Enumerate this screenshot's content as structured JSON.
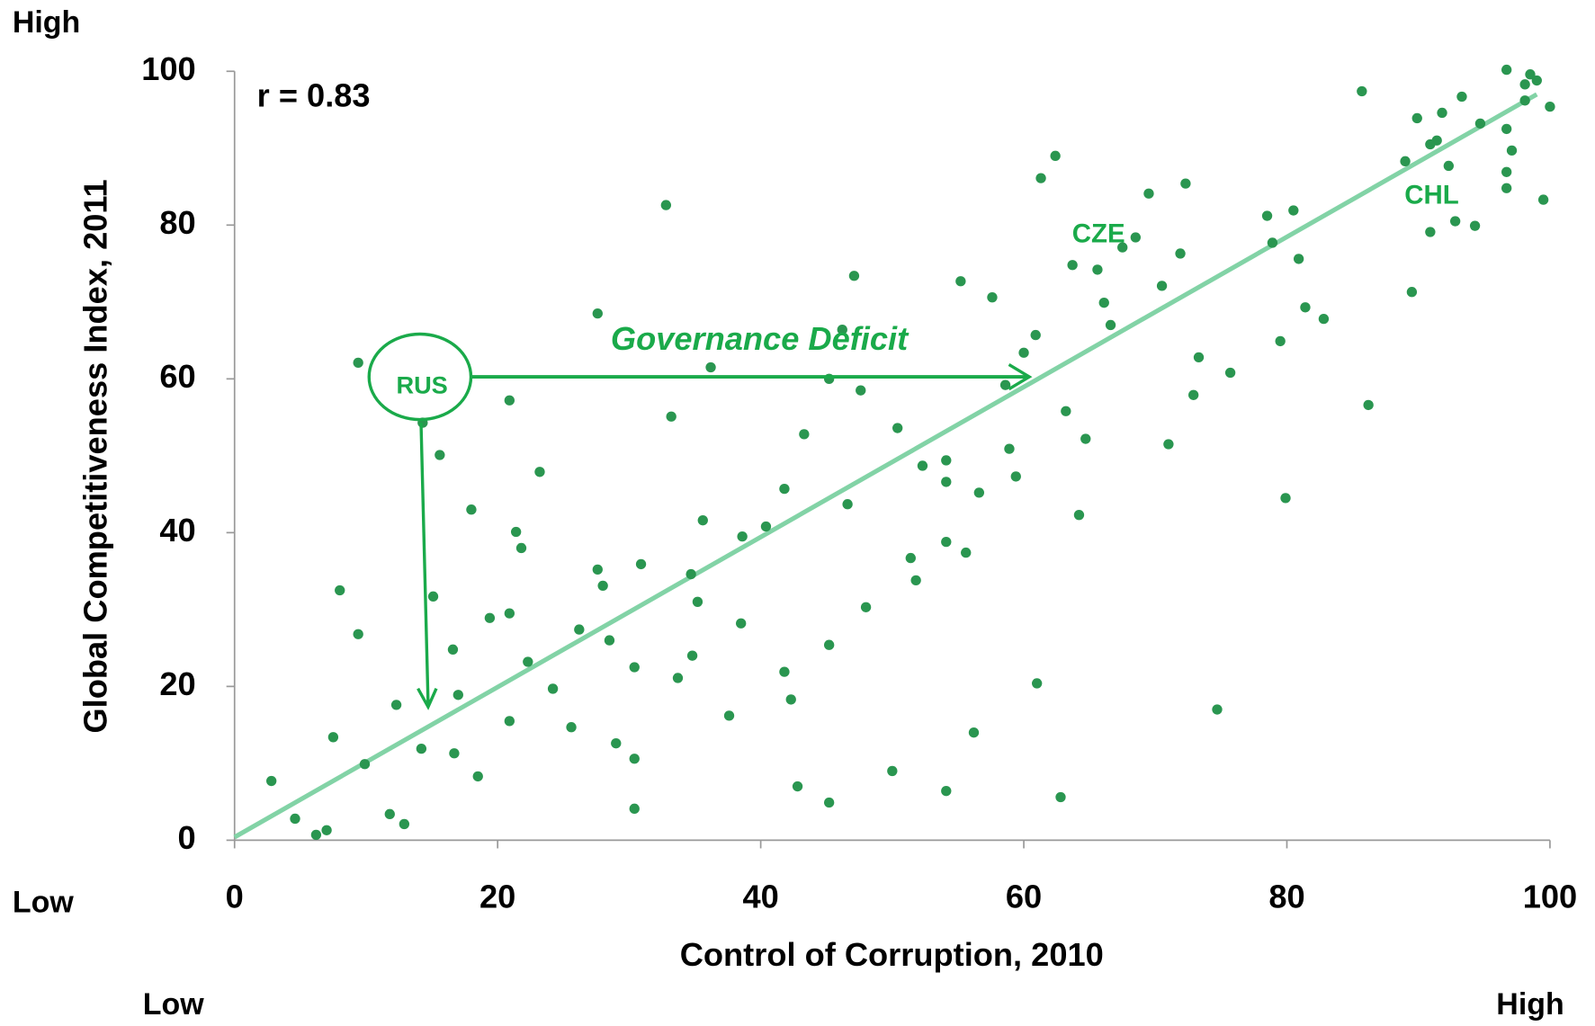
{
  "chart_data": {
    "type": "scatter",
    "xlabel": "Control of Corruption, 2010",
    "ylabel": "Global Competitiveness Index, 2011",
    "y_high_label": "High",
    "y_low_label": "Low",
    "x_low_label": "Low",
    "x_high_label": "High",
    "correlation_label": "r = 0.83",
    "annotations": [
      "RUS",
      "CZE",
      "CHL",
      "Governance Deficit"
    ],
    "xlim": [
      0,
      100
    ],
    "ylim": [
      0,
      100
    ],
    "xticks": [
      0,
      20,
      40,
      60,
      80,
      100
    ],
    "yticks": [
      0,
      20,
      40,
      60,
      80,
      100
    ],
    "color": "#2a9650",
    "trend_color": "#82d3a6",
    "trendline": {
      "x": [
        0,
        99
      ],
      "y": [
        0.4,
        97
      ]
    },
    "x": [
      2.8,
      4.6,
      6.2,
      7.0,
      7.5,
      8.0,
      9.4,
      9.4,
      9.9,
      11.8,
      12.3,
      12.9,
      14.2,
      14.3,
      15.1,
      15.6,
      16.6,
      16.7,
      17.0,
      18.0,
      18.5,
      19.4,
      20.9,
      20.9,
      20.9,
      21.4,
      21.8,
      22.3,
      23.2,
      24.2,
      25.6,
      26.2,
      27.6,
      27.6,
      28.0,
      28.5,
      29.0,
      30.4,
      30.4,
      30.4,
      30.9,
      32.8,
      33.2,
      33.7,
      34.7,
      34.8,
      35.2,
      35.6,
      36.2,
      37.6,
      38.5,
      38.6,
      40.4,
      41.8,
      41.8,
      42.3,
      42.8,
      43.3,
      45.2,
      45.2,
      45.2,
      46.2,
      46.6,
      47.1,
      47.6,
      48.0,
      50.0,
      50.4,
      51.4,
      51.8,
      52.3,
      54.1,
      54.1,
      54.1,
      54.1,
      55.2,
      55.6,
      56.2,
      56.6,
      57.6,
      58.6,
      58.9,
      59.4,
      60.0,
      60.9,
      61.0,
      61.3,
      62.4,
      62.8,
      63.2,
      63.7,
      64.2,
      64.7,
      65.6,
      66.1,
      66.6,
      67.5,
      68.5,
      69.5,
      70.5,
      71.0,
      71.9,
      72.3,
      72.9,
      73.3,
      74.7,
      75.7,
      78.5,
      78.9,
      79.5,
      79.9,
      80.5,
      80.9,
      81.4,
      82.8,
      85.7,
      86.2,
      89.0,
      89.5,
      89.9,
      90.9,
      90.9,
      91.4,
      91.8,
      92.3,
      92.8,
      93.3,
      94.3,
      94.7,
      96.7,
      96.7,
      96.7,
      96.7,
      97.1,
      98.1,
      98.1,
      98.5,
      99.0,
      99.5,
      100
    ],
    "y": [
      7.7,
      2.8,
      0.7,
      1.3,
      13.4,
      32.5,
      26.8,
      62.1,
      9.9,
      3.4,
      17.6,
      2.1,
      11.9,
      54.3,
      31.7,
      50.1,
      24.8,
      11.3,
      18.9,
      43.0,
      8.3,
      28.9,
      57.2,
      29.5,
      15.5,
      40.1,
      38.0,
      23.2,
      47.9,
      19.7,
      14.7,
      27.4,
      68.5,
      35.2,
      33.1,
      26.0,
      12.6,
      22.5,
      10.6,
      4.1,
      35.9,
      82.6,
      55.1,
      21.1,
      34.6,
      24.0,
      31.0,
      41.6,
      61.5,
      16.2,
      28.2,
      39.5,
      40.8,
      45.7,
      21.9,
      18.3,
      7.0,
      52.8,
      25.4,
      60.0,
      4.9,
      66.4,
      43.7,
      73.4,
      58.5,
      30.3,
      9.0,
      53.6,
      36.7,
      33.8,
      48.7,
      6.4,
      49.4,
      46.6,
      38.8,
      72.7,
      37.4,
      14.0,
      45.2,
      70.6,
      59.2,
      50.9,
      47.3,
      63.4,
      65.7,
      20.4,
      86.1,
      89.0,
      5.6,
      55.8,
      74.8,
      42.3,
      52.2,
      74.2,
      69.9,
      67.0,
      77.1,
      78.4,
      84.1,
      72.1,
      51.5,
      76.3,
      85.4,
      57.9,
      62.8,
      17.0,
      60.8,
      81.2,
      77.7,
      64.9,
      44.5,
      81.9,
      75.6,
      69.3,
      67.8,
      97.4,
      56.6,
      88.3,
      71.3,
      93.9,
      79.1,
      90.5,
      91.0,
      94.6,
      87.7,
      80.5,
      96.7,
      79.9,
      93.2,
      100.2,
      92.5,
      84.8,
      86.9,
      89.7,
      98.3,
      96.2,
      99.6,
      98.8,
      83.3,
      95.4
    ]
  }
}
